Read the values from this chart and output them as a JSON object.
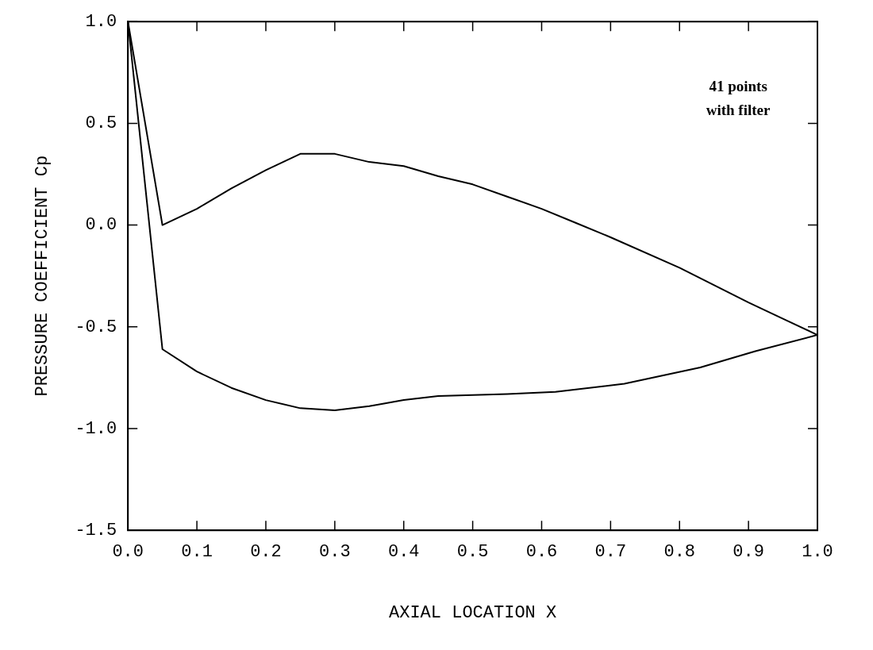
{
  "chart_data": {
    "type": "line",
    "xlabel": "AXIAL LOCATION X",
    "ylabel": "PRESSURE COEFFICIENT Cp",
    "xlim": [
      0,
      1
    ],
    "ylim": [
      -1.5,
      1
    ],
    "xticks": [
      {
        "value": 0,
        "label": "0.0"
      },
      0.1,
      0.2,
      0.3,
      0.4,
      0.5,
      0.6,
      0.7,
      0.8,
      0.9,
      {
        "value": 1,
        "label": "1.0"
      }
    ],
    "yticks": [
      -1.5,
      {
        "value": -1,
        "label": "-1.0"
      },
      -0.5,
      {
        "value": 0,
        "label": "0.0"
      },
      0.5,
      {
        "value": 1,
        "label": "1.0"
      }
    ],
    "grid": false,
    "legend": false,
    "marker": "none",
    "line_style": "solid",
    "annotations": [
      "41 points\nwith filter"
    ],
    "series": [
      {
        "color": "#000000",
        "x": [
          0,
          0.05,
          0.1,
          0.15,
          0.2,
          0.25,
          0.3,
          0.35,
          0.4,
          0.45,
          0.5,
          0.55,
          0.6,
          0.65,
          0.7,
          0.8,
          0.9,
          0.95,
          1
        ],
        "values": [
          1,
          0,
          0.08,
          0.18,
          0.27,
          0.35,
          0.35,
          0.31,
          0.29,
          0.24,
          0.2,
          0.14,
          0.08,
          0.01,
          -0.06,
          -0.21,
          -0.38,
          -0.46,
          -0.54
        ]
      },
      {
        "color": "#000000",
        "x": [
          0,
          0.05,
          0.1,
          0.15,
          0.2,
          0.25,
          0.3,
          0.35,
          0.4,
          0.45,
          0.55,
          0.62,
          0.72,
          0.83,
          0.91,
          1
        ],
        "values": [
          1,
          -0.61,
          -0.72,
          -0.8,
          -0.86,
          -0.9,
          -0.91,
          -0.89,
          -0.86,
          -0.84,
          -0.83,
          -0.82,
          -0.78,
          -0.7,
          -0.62,
          -0.54
        ]
      }
    ]
  }
}
